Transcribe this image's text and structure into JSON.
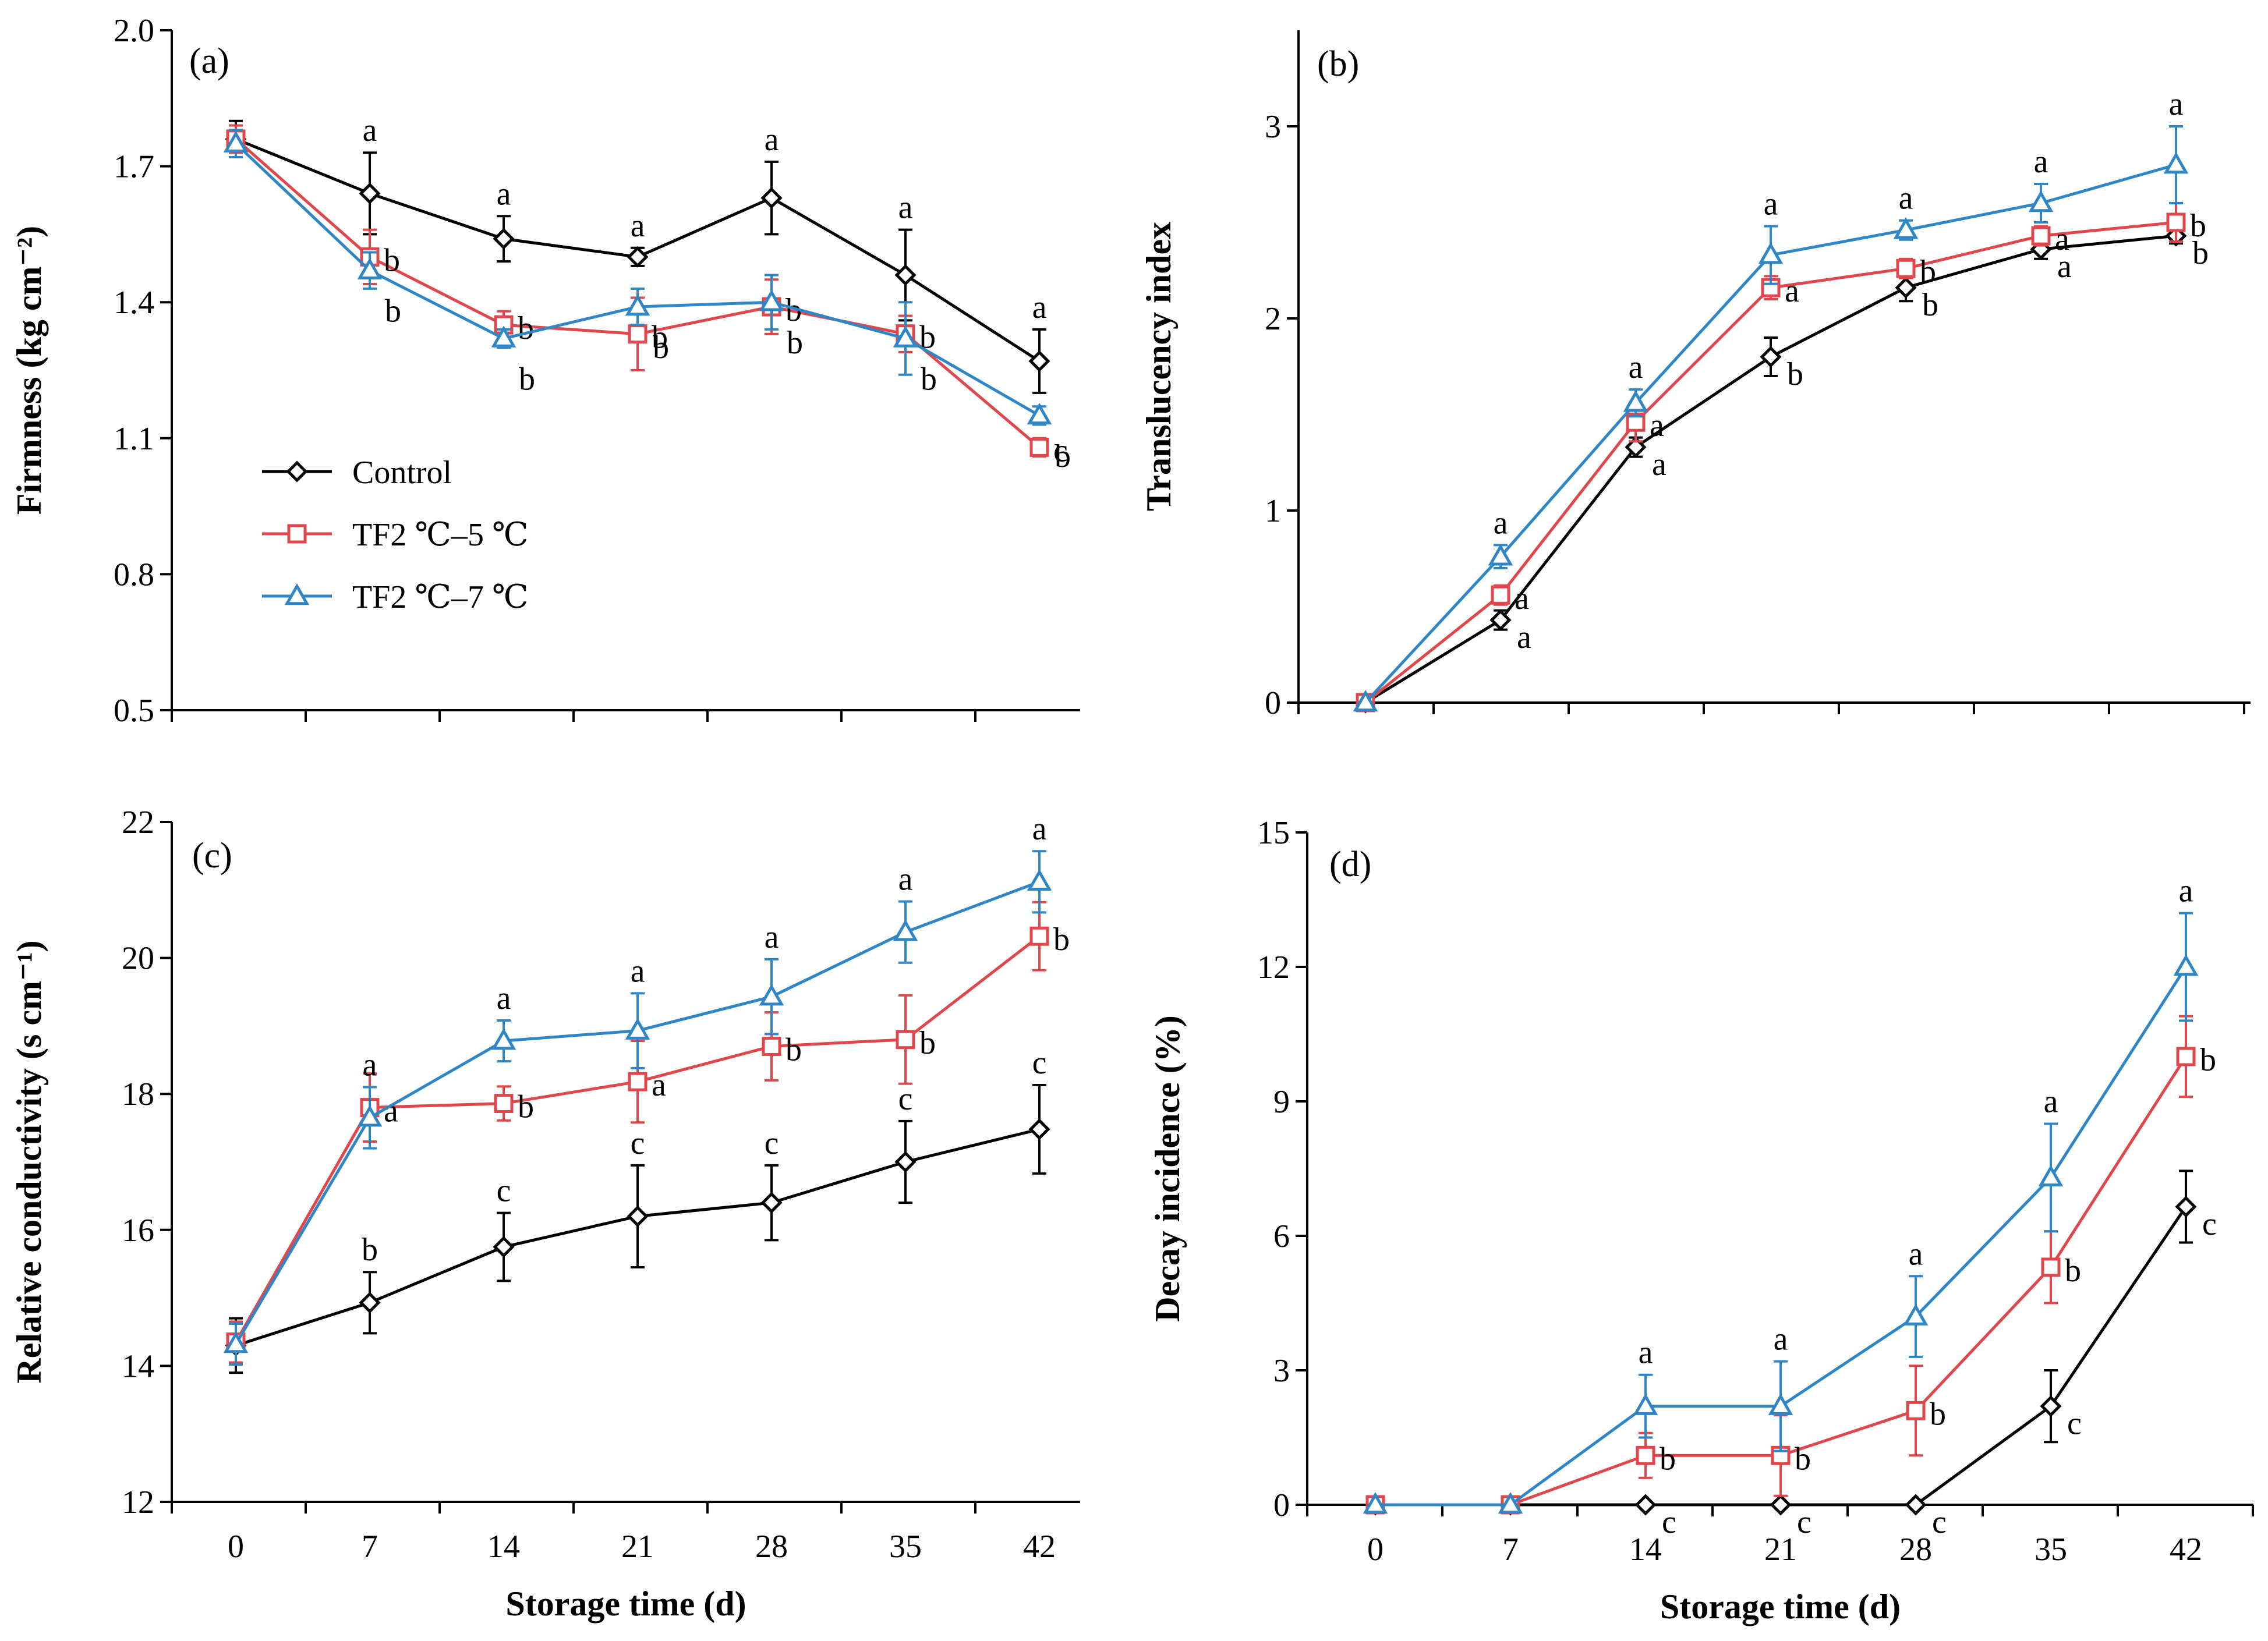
{
  "figure": {
    "x_axis_title": "Storage time (d)"
  },
  "legend": {
    "entries": [
      {
        "label": "Control",
        "series": "control"
      },
      {
        "label": "TF2 ℃–5 ℃",
        "series": "tf5"
      },
      {
        "label": "TF2 ℃–7 ℃",
        "series": "tf7"
      }
    ]
  },
  "series_style": {
    "control": {
      "color": "#000000",
      "marker": "diamond"
    },
    "tf5": {
      "color": "#e0474c",
      "marker": "square"
    },
    "tf7": {
      "color": "#2f86c6",
      "marker": "triangle"
    }
  },
  "chart_data": [
    {
      "id": "a",
      "panel_label": "(a)",
      "type": "line",
      "xlabel": "",
      "ylabel": "Firmness (kg cm⁻²)",
      "x": [
        0,
        7,
        14,
        21,
        28,
        35,
        42
      ],
      "x_tick_labels": [],
      "ylim": [
        0.5,
        2.0
      ],
      "y_ticks": [
        0.5,
        0.8,
        1.1,
        1.4,
        1.7,
        2.0
      ],
      "y_tick_labels": [
        "0.5",
        "0.8",
        "1.1",
        "1.4",
        "1.7",
        "2.0"
      ],
      "show_legend": true,
      "series": [
        {
          "name": "Control",
          "key": "control",
          "values": [
            1.76,
            1.64,
            1.54,
            1.5,
            1.63,
            1.46,
            1.27
          ],
          "errors": [
            0.04,
            0.09,
            0.05,
            0.02,
            0.08,
            0.1,
            0.07
          ],
          "letters": [
            "",
            "a",
            "a",
            "a",
            "a",
            "a",
            "a"
          ]
        },
        {
          "name": "TF2 ℃–5 ℃",
          "key": "tf5",
          "values": [
            1.76,
            1.5,
            1.35,
            1.33,
            1.39,
            1.33,
            1.08
          ],
          "errors": [
            0.03,
            0.06,
            0.03,
            0.08,
            0.06,
            0.04,
            0.02
          ],
          "letters": [
            "",
            "b",
            "b",
            "b",
            "b",
            "b",
            "c"
          ]
        },
        {
          "name": "TF2 ℃–7 ℃",
          "key": "tf7",
          "values": [
            1.75,
            1.47,
            1.32,
            1.39,
            1.4,
            1.32,
            1.15
          ],
          "errors": [
            0.03,
            0.04,
            0.02,
            0.04,
            0.06,
            0.08,
            0.02
          ],
          "letters": [
            "",
            "b",
            "b",
            "b",
            "b",
            "b",
            "b"
          ]
        }
      ]
    },
    {
      "id": "b",
      "panel_label": "(b)",
      "type": "line",
      "xlabel": "",
      "ylabel": "Translucency index",
      "x": [
        0,
        7,
        14,
        21,
        28,
        35,
        42
      ],
      "x_tick_labels": [],
      "ylim": [
        0,
        3.5
      ],
      "y_ticks": [
        0,
        1,
        2,
        3
      ],
      "y_tick_labels": [
        "0",
        "1",
        "2",
        "3"
      ],
      "show_legend": false,
      "series": [
        {
          "name": "Control",
          "key": "control",
          "values": [
            0,
            0.43,
            1.33,
            1.8,
            2.16,
            2.36,
            2.43
          ],
          "errors": [
            0,
            0.05,
            0.05,
            0.1,
            0.07,
            0.05,
            0.04
          ],
          "letters": [
            "",
            "a",
            "a",
            "b",
            "b",
            "a",
            "b"
          ]
        },
        {
          "name": "TF2 ℃–5 ℃",
          "key": "tf5",
          "values": [
            0,
            0.56,
            1.46,
            2.16,
            2.26,
            2.43,
            2.5
          ],
          "errors": [
            0,
            0.05,
            0.1,
            0.06,
            0.05,
            0.05,
            0.1
          ],
          "letters": [
            "",
            "a",
            "a",
            "a",
            "b",
            "a",
            "b"
          ]
        },
        {
          "name": "TF2 ℃–7 ℃",
          "key": "tf7",
          "values": [
            0,
            0.76,
            1.56,
            2.33,
            2.46,
            2.6,
            2.8
          ],
          "errors": [
            0,
            0.06,
            0.07,
            0.15,
            0.05,
            0.1,
            0.2
          ],
          "letters": [
            "",
            "a",
            "a",
            "a",
            "a",
            "a",
            "a"
          ]
        }
      ]
    },
    {
      "id": "c",
      "panel_label": "(c)",
      "type": "line",
      "xlabel": "Storage time (d)",
      "ylabel": "Relative conductivity (s cm⁻¹)",
      "x": [
        0,
        7,
        14,
        21,
        28,
        35,
        42
      ],
      "x_tick_labels": [
        "0",
        "7",
        "14",
        "21",
        "28",
        "35",
        "42"
      ],
      "ylim": [
        12,
        22
      ],
      "y_ticks": [
        12,
        14,
        16,
        18,
        20,
        22
      ],
      "y_tick_labels": [
        "12",
        "14",
        "16",
        "18",
        "20",
        "22"
      ],
      "show_legend": false,
      "series": [
        {
          "name": "Control",
          "key": "control",
          "values": [
            14.3,
            14.93,
            15.75,
            16.2,
            16.4,
            17.0,
            17.48
          ],
          "errors": [
            0.4,
            0.45,
            0.5,
            0.75,
            0.55,
            0.6,
            0.65
          ],
          "letters": [
            "",
            "b",
            "c",
            "c",
            "c",
            "c",
            "c"
          ]
        },
        {
          "name": "TF2 ℃–5 ℃",
          "key": "tf5",
          "values": [
            14.35,
            17.8,
            17.86,
            18.18,
            18.7,
            18.8,
            20.32
          ],
          "errors": [
            0.3,
            0.5,
            0.25,
            0.6,
            0.5,
            0.65,
            0.5
          ],
          "letters": [
            "",
            "a",
            "b",
            "a",
            "b",
            "b",
            "b"
          ]
        },
        {
          "name": "TF2 ℃–7 ℃",
          "key": "tf7",
          "values": [
            14.32,
            17.65,
            18.78,
            18.93,
            19.43,
            20.38,
            21.12
          ],
          "errors": [
            0.3,
            0.45,
            0.3,
            0.55,
            0.55,
            0.45,
            0.45
          ],
          "letters": [
            "",
            "a",
            "a",
            "a",
            "a",
            "a",
            "a"
          ]
        }
      ]
    },
    {
      "id": "d",
      "panel_label": "(d)",
      "type": "line",
      "xlabel": "Storage time (d)",
      "ylabel": "Decay incidence (%)",
      "x": [
        0,
        7,
        14,
        21,
        28,
        35,
        42
      ],
      "x_tick_labels": [
        "0",
        "7",
        "14",
        "21",
        "28",
        "35",
        "42"
      ],
      "ylim": [
        0,
        15
      ],
      "y_ticks": [
        0,
        3,
        6,
        9,
        12,
        15
      ],
      "y_tick_labels": [
        "0",
        "3",
        "6",
        "9",
        "12",
        "15"
      ],
      "show_legend": false,
      "series": [
        {
          "name": "Control",
          "key": "control",
          "values": [
            0,
            0,
            0,
            0,
            0,
            2.2,
            6.65
          ],
          "errors": [
            0,
            0,
            0,
            0,
            0,
            0.8,
            0.8
          ],
          "letters": [
            "",
            "",
            "c",
            "c",
            "c",
            "c",
            "c"
          ]
        },
        {
          "name": "TF2 ℃–5 ℃",
          "key": "tf5",
          "values": [
            0,
            0,
            1.1,
            1.1,
            2.1,
            5.3,
            10.0
          ],
          "errors": [
            0,
            0,
            0.5,
            0.9,
            1.0,
            0.8,
            0.9
          ],
          "letters": [
            "",
            "",
            "b",
            "b",
            "b",
            "b",
            "b"
          ]
        },
        {
          "name": "TF2 ℃–7 ℃",
          "key": "tf7",
          "values": [
            0,
            0,
            2.2,
            2.2,
            4.2,
            7.3,
            12.0
          ],
          "errors": [
            0,
            0,
            0.7,
            1.0,
            0.9,
            1.2,
            1.2
          ],
          "letters": [
            "",
            "",
            "a",
            "a",
            "a",
            "a",
            "a"
          ]
        }
      ]
    }
  ]
}
